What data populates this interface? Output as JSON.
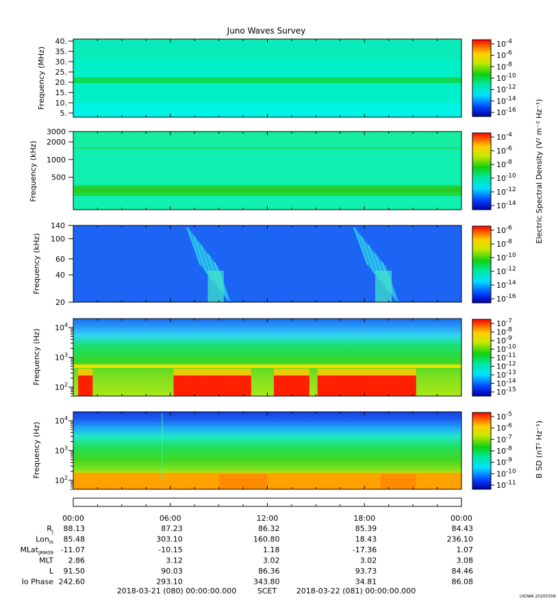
{
  "title": "Juno Waves Survey",
  "stamp": "UIOWA 20200306",
  "panels": [
    {
      "ylabel": "Frequency (MHz)",
      "yticks": [
        "40.",
        "35.",
        "30.",
        "25.",
        "20.",
        "15.",
        "10.",
        "5."
      ],
      "colorbar_exponents": [
        "-4",
        "-6",
        "-8",
        "-10",
        "-12",
        "-14",
        "-16"
      ]
    },
    {
      "ylabel": "Frequency (kHz)",
      "yticks": [
        "3000",
        "2000",
        "1000",
        "500"
      ],
      "colorbar_exponents": [
        "-4",
        "-6",
        "-8",
        "-10",
        "-12",
        "-14"
      ]
    },
    {
      "ylabel": "Frequency (kHz)",
      "yticks": [
        "140",
        "100",
        "60",
        "40",
        "20"
      ],
      "colorbar_exponents": [
        "-6",
        "-8",
        "-10",
        "-12",
        "-14",
        "-16"
      ]
    },
    {
      "ylabel": "Frequency (Hz)",
      "yticks_exp": [
        "4",
        "3",
        "2"
      ],
      "colorbar_exponents": [
        "-7",
        "-8",
        "-9",
        "-10",
        "-11",
        "-12",
        "-13",
        "-14",
        "-15"
      ]
    },
    {
      "ylabel": "Frequency (Hz)",
      "yticks_exp": [
        "4",
        "3",
        "2"
      ],
      "colorbar_exponents": [
        "-5",
        "-6",
        "-7",
        "-8",
        "-9",
        "-10",
        "-11"
      ]
    }
  ],
  "cbar_label_electric": "Electric Spectral Density (V² m⁻² Hz⁻¹)",
  "cbar_label_b": "B SD (nT² Hz⁻¹)",
  "ephemeris": {
    "times": [
      "00:00",
      "06:00",
      "12:00",
      "18:00",
      "00:00"
    ],
    "rows": [
      {
        "label": "R",
        "sub": "J",
        "values": [
          "88.13",
          "87.23",
          "86.32",
          "85.39",
          "84.43"
        ]
      },
      {
        "label": "Lon",
        "sub": "III",
        "values": [
          "85.48",
          "303.10",
          "160.80",
          "18.43",
          "236.10"
        ]
      },
      {
        "label": "MLat",
        "sub": "JRM09",
        "values": [
          "-11.07",
          "-10.15",
          "1.18",
          "-17.36",
          "1.07"
        ]
      },
      {
        "label": "MLT",
        "sub": "",
        "values": [
          "2.86",
          "3.12",
          "3.02",
          "3.02",
          "3.08"
        ]
      },
      {
        "label": "L",
        "sub": "",
        "values": [
          "91.50",
          "90.03",
          "86.36",
          "93.73",
          "84.46"
        ]
      },
      {
        "label": "Io Phase",
        "sub": "",
        "values": [
          "242.60",
          "293.10",
          "343.80",
          "34.81",
          "86.08"
        ]
      }
    ]
  },
  "footer": {
    "start": "2018-03-21 (080) 00:00:00.000",
    "scet": "SCET",
    "end": "2018-03-22 (081) 00:00:00.000"
  },
  "chart_data": {
    "type": "heatmap",
    "title": "Juno Waves Survey",
    "x_axis": {
      "label": "SCET",
      "range": [
        "2018-03-21 00:00",
        "2018-03-22 00:00"
      ],
      "ticks": [
        "00:00",
        "06:00",
        "12:00",
        "18:00",
        "00:00"
      ]
    },
    "panels": [
      {
        "ylabel": "Frequency (MHz)",
        "ylim": [
          3,
          41
        ],
        "colorbar": "Electric Spectral Density (V^2 m^-2 Hz^-1)",
        "clim": [
          "1e-16",
          "1e-4"
        ],
        "features": [
          {
            "band_MHz": 21,
            "level": "1e-12"
          }
        ]
      },
      {
        "ylabel": "Frequency (kHz)",
        "ylim": [
          140,
          3000
        ],
        "yscale": "log",
        "colorbar": "Electric Spectral Density (V^2 m^-2 Hz^-1)",
        "clim": [
          "1e-14",
          "1e-4"
        ],
        "features": [
          {
            "band_kHz": 300,
            "level": "1e-12"
          }
        ]
      },
      {
        "ylabel": "Frequency (kHz)",
        "ylim": [
          20,
          140
        ],
        "yscale": "log",
        "colorbar": "Electric Spectral Density (V^2 m^-2 Hz^-1)",
        "clim": [
          "1e-16",
          "1e-6"
        ],
        "features": [
          {
            "bursts_hours": [
              [
                6.5,
                9.8
              ],
              [
                16.8,
                20.2
              ]
            ],
            "level": "1e-13"
          }
        ]
      },
      {
        "ylabel": "Frequency (Hz)",
        "ylim": [
          50,
          20000
        ],
        "yscale": "log",
        "colorbar": "Electric Spectral Density (V^2 m^-2 Hz^-1)",
        "clim": [
          "1e-15",
          "1e-7"
        ],
        "features": [
          {
            "band_Hz": 500,
            "level": "1e-10"
          },
          {
            "intense_low_freq_hours": [
              [
                0.3,
                1.2
              ],
              [
                6.2,
                11.0
              ],
              [
                12.4,
                14.6
              ],
              [
                15.1,
                21.2
              ]
            ],
            "level": "1e-7"
          }
        ]
      },
      {
        "ylabel": "Frequency (Hz)",
        "ylim": [
          50,
          20000
        ],
        "yscale": "log",
        "colorbar": "B SD (nT^2 Hz^-1)",
        "clim": [
          "1e-11",
          "1e-5"
        ],
        "features": [
          {
            "low_freq_enhanced_hours": [
              [
                9.0,
                12.0
              ],
              [
                19.0,
                21.2
              ]
            ],
            "level": "1e-7"
          }
        ]
      }
    ]
  }
}
